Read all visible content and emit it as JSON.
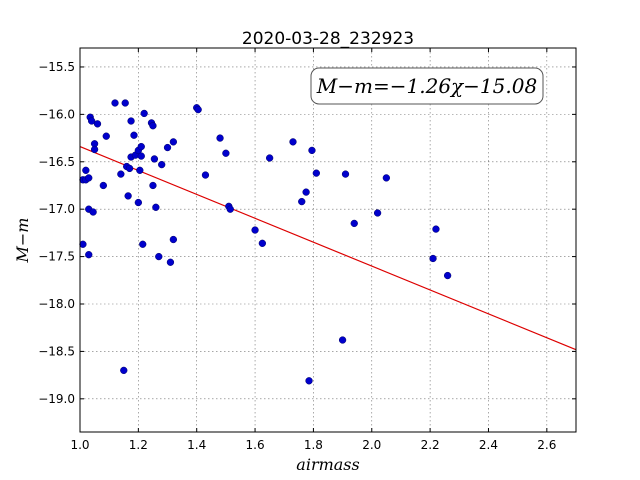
{
  "chart_data": {
    "type": "scatter",
    "title": "2020-03-28_232923",
    "xlabel": "airmass",
    "ylabel": "M−m",
    "xlim": [
      1.0,
      2.7
    ],
    "ylim": [
      -15.3,
      -19.35
    ],
    "y_inverted": true,
    "x_ticks": [
      1.0,
      1.2,
      1.4,
      1.6,
      1.8,
      2.0,
      2.2,
      2.4,
      2.6
    ],
    "x_tick_labels": [
      "1.0",
      "1.2",
      "1.4",
      "1.6",
      "1.8",
      "2.0",
      "2.2",
      "2.4",
      "2.6"
    ],
    "y_ticks": [
      -15.5,
      -16.0,
      -16.5,
      -17.0,
      -17.5,
      -18.0,
      -18.5,
      -19.0
    ],
    "y_tick_labels": [
      "−15.5",
      "−16.0",
      "−16.5",
      "−17.0",
      "−17.5",
      "−18.0",
      "−18.5",
      "−19.0"
    ],
    "grid": true,
    "annotation": "M−m=−1.26χ−15.08",
    "fit": {
      "slope": -1.26,
      "intercept": -15.08,
      "color": "#dd0000"
    },
    "point_color": "#0000cc",
    "points": [
      [
        1.01,
        -16.69
      ],
      [
        1.01,
        -17.37
      ],
      [
        1.02,
        -16.59
      ],
      [
        1.02,
        -16.69
      ],
      [
        1.03,
        -17.48
      ],
      [
        1.03,
        -17.0
      ],
      [
        1.03,
        -16.67
      ],
      [
        1.035,
        -16.03
      ],
      [
        1.04,
        -16.07
      ],
      [
        1.045,
        -17.03
      ],
      [
        1.05,
        -16.31
      ],
      [
        1.05,
        -16.37
      ],
      [
        1.06,
        -16.1
      ],
      [
        1.08,
        -16.75
      ],
      [
        1.09,
        -16.23
      ],
      [
        1.12,
        -15.88
      ],
      [
        1.14,
        -16.63
      ],
      [
        1.15,
        -18.7
      ],
      [
        1.155,
        -15.88
      ],
      [
        1.16,
        -16.55
      ],
      [
        1.165,
        -16.86
      ],
      [
        1.17,
        -16.57
      ],
      [
        1.175,
        -16.45
      ],
      [
        1.175,
        -16.07
      ],
      [
        1.185,
        -16.22
      ],
      [
        1.19,
        -16.43
      ],
      [
        1.2,
        -16.93
      ],
      [
        1.2,
        -16.38
      ],
      [
        1.205,
        -16.59
      ],
      [
        1.21,
        -16.34
      ],
      [
        1.21,
        -16.44
      ],
      [
        1.215,
        -17.37
      ],
      [
        1.22,
        -15.99
      ],
      [
        1.245,
        -16.09
      ],
      [
        1.25,
        -16.12
      ],
      [
        1.25,
        -16.75
      ],
      [
        1.255,
        -16.47
      ],
      [
        1.26,
        -16.98
      ],
      [
        1.27,
        -17.5
      ],
      [
        1.28,
        -16.53
      ],
      [
        1.3,
        -16.35
      ],
      [
        1.31,
        -17.56
      ],
      [
        1.32,
        -16.29
      ],
      [
        1.32,
        -17.32
      ],
      [
        1.4,
        -15.93
      ],
      [
        1.405,
        -15.95
      ],
      [
        1.43,
        -16.64
      ],
      [
        1.48,
        -16.25
      ],
      [
        1.5,
        -16.41
      ],
      [
        1.51,
        -16.97
      ],
      [
        1.515,
        -17.0
      ],
      [
        1.6,
        -17.22
      ],
      [
        1.625,
        -17.36
      ],
      [
        1.65,
        -16.46
      ],
      [
        1.73,
        -16.29
      ],
      [
        1.76,
        -16.92
      ],
      [
        1.775,
        -16.82
      ],
      [
        1.785,
        -18.81
      ],
      [
        1.795,
        -16.38
      ],
      [
        1.81,
        -16.62
      ],
      [
        1.9,
        -18.38
      ],
      [
        1.91,
        -16.63
      ],
      [
        1.94,
        -17.15
      ],
      [
        2.02,
        -17.04
      ],
      [
        2.05,
        -16.67
      ],
      [
        2.21,
        -17.52
      ],
      [
        2.22,
        -17.21
      ],
      [
        2.26,
        -17.7
      ]
    ]
  }
}
